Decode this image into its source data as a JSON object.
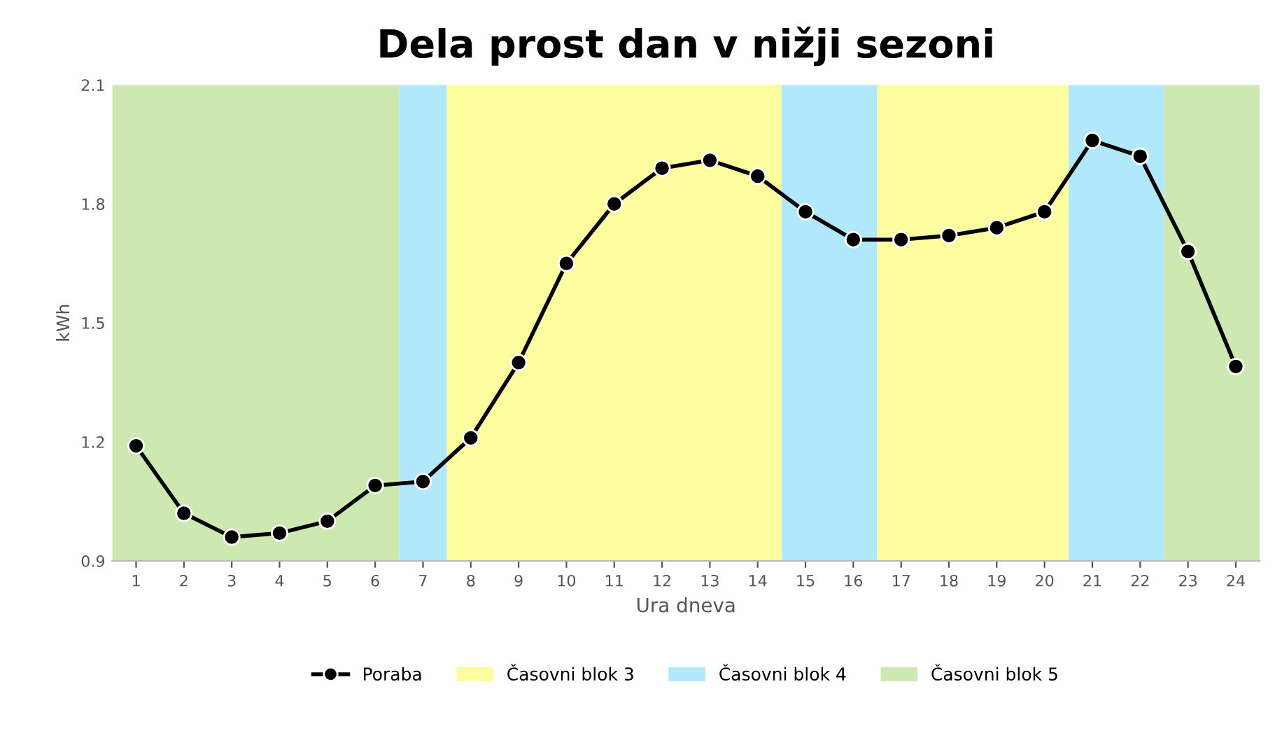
{
  "chart_data": {
    "type": "line",
    "title": "Dela prost dan v nižji sezoni",
    "xlabel": "Ura dneva",
    "ylabel": "kWh",
    "x": [
      1,
      2,
      3,
      4,
      5,
      6,
      7,
      8,
      9,
      10,
      11,
      12,
      13,
      14,
      15,
      16,
      17,
      18,
      19,
      20,
      21,
      22,
      23,
      24
    ],
    "series": [
      {
        "name": "Poraba",
        "color": "#000000",
        "values": [
          1.19,
          1.02,
          0.96,
          0.97,
          1.0,
          1.09,
          1.1,
          1.21,
          1.4,
          1.65,
          1.8,
          1.89,
          1.91,
          1.87,
          1.78,
          1.71,
          1.71,
          1.72,
          1.74,
          1.78,
          1.96,
          1.92,
          1.68,
          1.39
        ]
      }
    ],
    "bands": [
      {
        "axis": "x",
        "from": 0.5,
        "to": 6.5,
        "label": "Časovni blok 5",
        "color": "#cde8b0"
      },
      {
        "axis": "x",
        "from": 6.5,
        "to": 7.5,
        "label": "Časovni blok 4",
        "color": "#b2e8fc"
      },
      {
        "axis": "x",
        "from": 7.5,
        "to": 14.5,
        "label": "Časovni blok 3",
        "color": "#fdfd9f"
      },
      {
        "axis": "x",
        "from": 14.5,
        "to": 16.5,
        "color": "#b2e8fc"
      },
      {
        "axis": "x",
        "from": 16.5,
        "to": 20.5,
        "color": "#fdfd9f"
      },
      {
        "axis": "x",
        "from": 20.5,
        "to": 22.5,
        "color": "#b2e8fc"
      },
      {
        "axis": "x",
        "from": 22.5,
        "to": 24.5,
        "color": "#cde8b0"
      }
    ],
    "xlim": [
      0.5,
      24.5
    ],
    "xticks": [
      1,
      2,
      3,
      4,
      5,
      6,
      7,
      8,
      9,
      10,
      11,
      12,
      13,
      14,
      15,
      16,
      17,
      18,
      19,
      20,
      21,
      22,
      23,
      24
    ],
    "ylim": [
      0.9,
      2.1
    ],
    "yticks": [
      0.9,
      1.2,
      1.5,
      1.8,
      2.1
    ],
    "marker": "circle",
    "line_style": "solid",
    "grid": false,
    "legend": "bottom"
  }
}
